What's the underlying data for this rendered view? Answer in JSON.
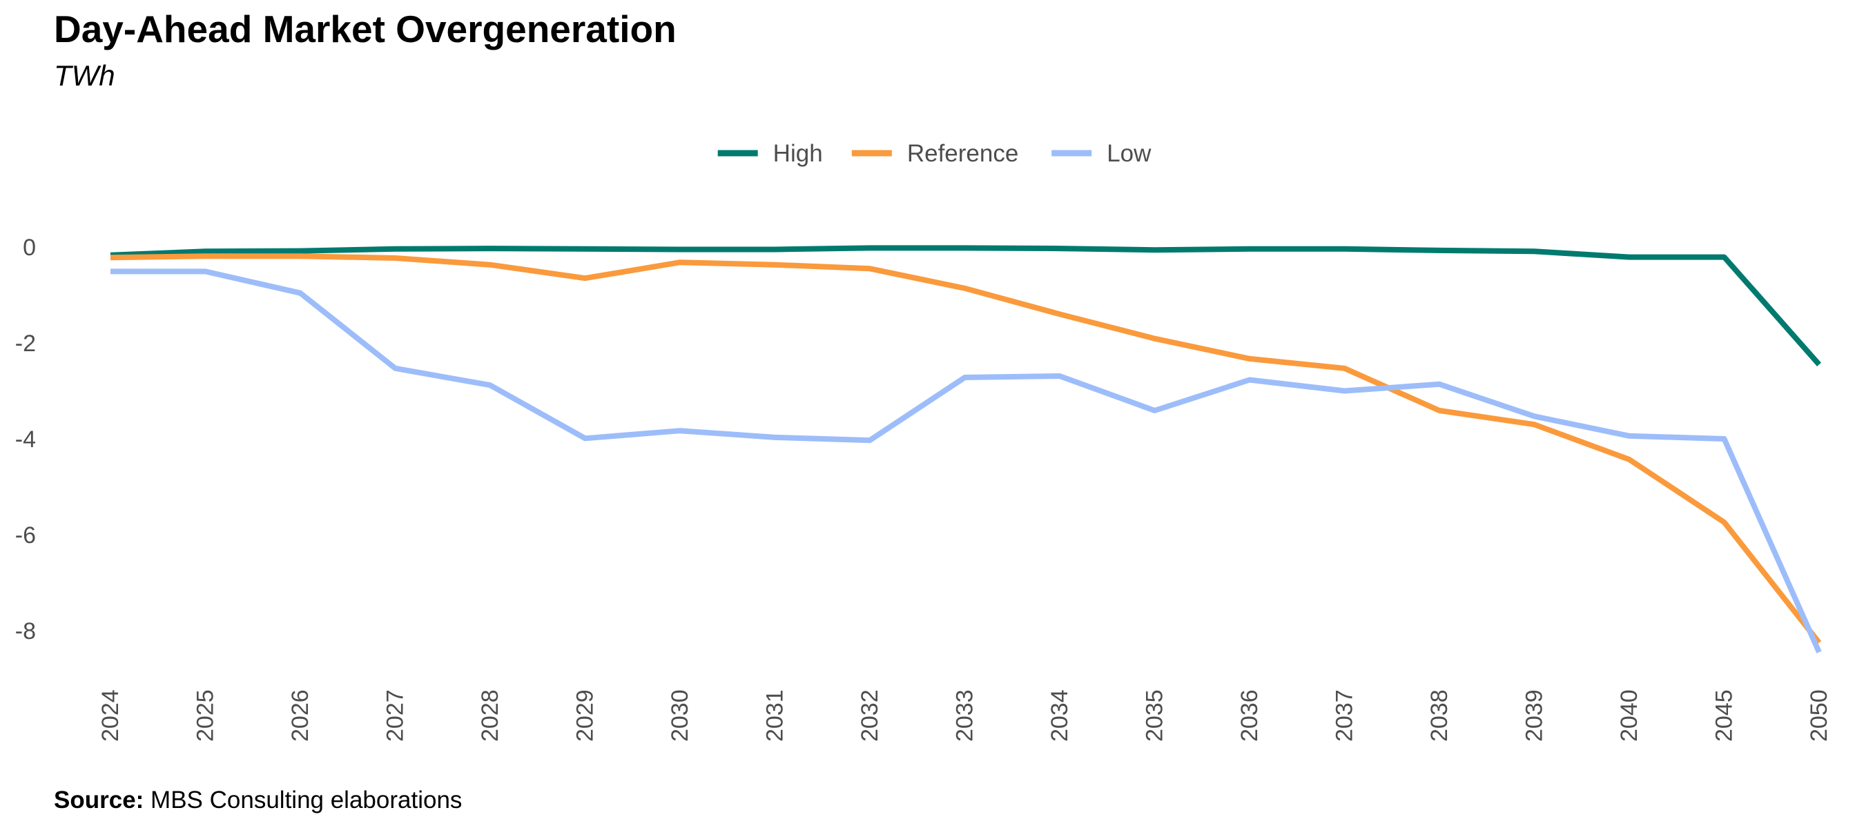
{
  "chart_data": {
    "type": "line",
    "title": "Day-Ahead Market Overgeneration",
    "subtitle": "TWh",
    "xlabel": "",
    "ylabel": "",
    "categories": [
      "2024",
      "2025",
      "2026",
      "2027",
      "2028",
      "2029",
      "2030",
      "2031",
      "2032",
      "2033",
      "2034",
      "2035",
      "2036",
      "2037",
      "2038",
      "2039",
      "2040",
      "2045",
      "2050"
    ],
    "y_ticks": [
      0,
      -2,
      -4,
      -6,
      -8
    ],
    "ylim": [
      -9,
      0.5
    ],
    "grid": false,
    "legend_position": "top-center",
    "series": [
      {
        "name": "High",
        "color": "#007A6E",
        "values": [
          -0.17,
          -0.09,
          -0.08,
          -0.04,
          -0.03,
          -0.04,
          -0.05,
          -0.05,
          -0.02,
          -0.02,
          -0.03,
          -0.06,
          -0.04,
          -0.04,
          -0.07,
          -0.09,
          -0.21,
          -0.21,
          -2.45
        ]
      },
      {
        "name": "Reference",
        "color": "#FA9A3C",
        "values": [
          -0.22,
          -0.19,
          -0.19,
          -0.23,
          -0.37,
          -0.65,
          -0.32,
          -0.37,
          -0.45,
          -0.86,
          -1.4,
          -1.91,
          -2.33,
          -2.53,
          -3.41,
          -3.7,
          -4.43,
          -5.74,
          -8.25
        ]
      },
      {
        "name": "Low",
        "color": "#9DBDFA",
        "values": [
          -0.51,
          -0.51,
          -0.96,
          -2.53,
          -2.88,
          -3.99,
          -3.83,
          -3.97,
          -4.03,
          -2.72,
          -2.69,
          -3.41,
          -2.77,
          -3.0,
          -2.86,
          -3.53,
          -3.94,
          -4.0,
          -8.45
        ]
      }
    ]
  },
  "source": {
    "label": "Source:",
    "text": "MBS Consulting elaborations"
  }
}
